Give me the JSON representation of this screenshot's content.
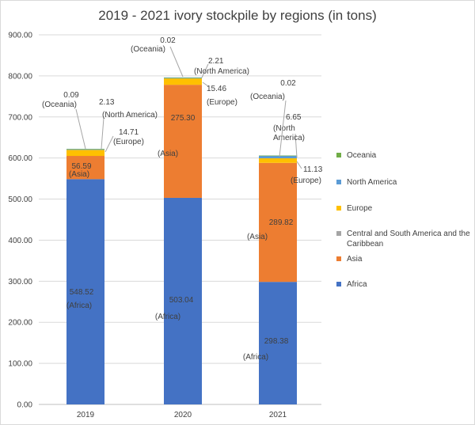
{
  "chart_data": {
    "type": "bar",
    "stacked": true,
    "title": "2019 - 2021 ivory stockpile by regions (in tons)",
    "categories": [
      "2019",
      "2020",
      "2021"
    ],
    "series": [
      {
        "name": "Africa",
        "values": [
          548.52,
          503.04,
          298.38
        ],
        "color": "#4472c4"
      },
      {
        "name": "Asia",
        "values": [
          56.59,
          275.3,
          289.82
        ],
        "color": "#ed7d31"
      },
      {
        "name": "Central and South America and the Caribbean",
        "values": [
          0,
          0,
          0
        ],
        "color": "#a5a5a5"
      },
      {
        "name": "Europe",
        "values": [
          14.71,
          15.46,
          11.13
        ],
        "color": "#ffc000"
      },
      {
        "name": "North America",
        "values": [
          2.13,
          2.21,
          6.65
        ],
        "color": "#5b9bd5"
      },
      {
        "name": "Oceania",
        "values": [
          0.09,
          0.02,
          0.02
        ],
        "color": "#70ad47"
      }
    ],
    "data_labels": [
      {
        "category": "2019",
        "series": "Africa",
        "value": "548.52",
        "region": "(Africa)"
      },
      {
        "category": "2019",
        "series": "Asia",
        "value": "56.59",
        "region": "(Asia)"
      },
      {
        "category": "2019",
        "series": "Europe",
        "value": "14.71",
        "region": "(Europe)"
      },
      {
        "category": "2019",
        "series": "North America",
        "value": "2.13",
        "region": "(North America)"
      },
      {
        "category": "2019",
        "series": "Oceania",
        "value": "0.09",
        "region": "(Oceania)"
      },
      {
        "category": "2020",
        "series": "Africa",
        "value": "503.04",
        "region": "(Africa)"
      },
      {
        "category": "2020",
        "series": "Asia",
        "value": "275.30",
        "region": "(Asia)"
      },
      {
        "category": "2020",
        "series": "Europe",
        "value": "15.46",
        "region": "(Europe)"
      },
      {
        "category": "2020",
        "series": "North America",
        "value": "2.21",
        "region": "(North America)"
      },
      {
        "category": "2020",
        "series": "Oceania",
        "value": "0.02",
        "region": "(Oceania)"
      },
      {
        "category": "2021",
        "series": "Africa",
        "value": "298.38",
        "region": "(Africa)"
      },
      {
        "category": "2021",
        "series": "Asia",
        "value": "289.82",
        "region": "(Asia)"
      },
      {
        "category": "2021",
        "series": "Europe",
        "value": "11.13",
        "region": "(Europe)"
      },
      {
        "category": "2021",
        "series": "North America",
        "value": "6.65",
        "region": "(North America)"
      },
      {
        "category": "2021",
        "series": "Oceania",
        "value": "0.02",
        "region": "(Oceania)"
      }
    ],
    "ylim": [
      0,
      900
    ],
    "yticks": [
      "0.00",
      "100.00",
      "200.00",
      "300.00",
      "400.00",
      "500.00",
      "600.00",
      "700.00",
      "800.00",
      "900.00"
    ],
    "grid": true,
    "legend_position": "right",
    "legend_order": [
      "Oceania",
      "North America",
      "Europe",
      "Central and South America and the Caribbean",
      "Asia",
      "Africa"
    ]
  }
}
